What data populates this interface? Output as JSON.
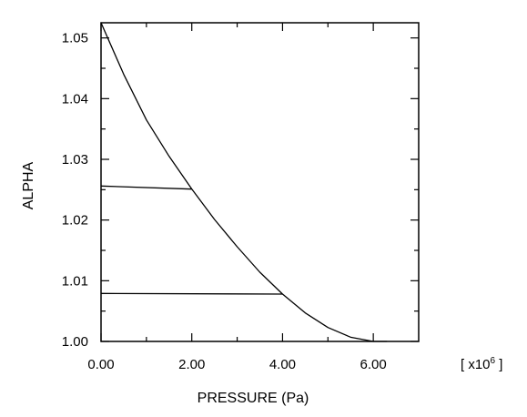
{
  "chart_data": {
    "type": "line",
    "xlabel": "PRESSURE (Pa)",
    "ylabel": "ALPHA",
    "x_multiplier": "[ x10",
    "x_multiplier_exp": "6",
    "x_multiplier_close": " ]",
    "xlim": [
      0,
      7
    ],
    "ylim": [
      1.0,
      1.0525
    ],
    "x_ticks": [
      0,
      2,
      4,
      6
    ],
    "x_tick_labels": [
      "0.00",
      "2.00",
      "4.00",
      "6.00"
    ],
    "x_minor_ticks": [
      1,
      3,
      5
    ],
    "y_ticks": [
      1.0,
      1.01,
      1.02,
      1.03,
      1.04,
      1.05
    ],
    "y_tick_labels": [
      "1.00",
      "1.01",
      "1.02",
      "1.03",
      "1.04",
      "1.05"
    ],
    "y_minor_ticks": [
      1.005,
      1.015,
      1.025,
      1.035,
      1.045
    ],
    "grid": false,
    "series": [
      {
        "x": [
          0,
          0.5,
          1,
          1.5,
          2,
          2.5,
          3,
          3.5,
          4,
          4.5,
          5,
          5.5,
          6,
          6.3
        ],
        "y": [
          1.0525,
          1.044,
          1.0365,
          1.0305,
          1.0251,
          1.0201,
          1.0156,
          1.0114,
          1.0078,
          1.0047,
          1.0023,
          1.0007,
          1.0,
          1.0
        ]
      },
      {
        "x": [
          0,
          2
        ],
        "y": [
          1.0256,
          1.0251
        ]
      },
      {
        "x": [
          0,
          4
        ],
        "y": [
          1.0079,
          1.0078
        ]
      }
    ]
  }
}
